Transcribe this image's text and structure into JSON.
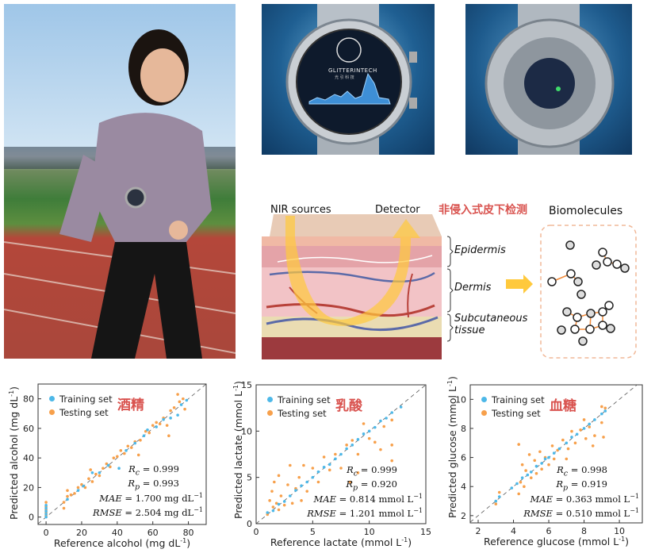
{
  "photos": {
    "runner": {
      "icon": "runner-photo"
    },
    "watch_front": {
      "brand": "GLITTERINTECH",
      "brand_cn": "光 引 科 技",
      "icon": "smartwatch-front-photo"
    },
    "watch_back": {
      "icon": "smartwatch-back-photo"
    }
  },
  "diagram": {
    "nir_sources": "NIR sources",
    "detector": "Detector",
    "title_cn": "非侵入式皮下检测",
    "biomolecules": "Biomolecules",
    "layers": [
      "Epidermis",
      "Dermis",
      "Subcutaneous",
      "tissue"
    ],
    "colors": {
      "light": "#ffc93c",
      "vein": "#5b6aa8",
      "artery": "#b8423a",
      "title": "#d9534f"
    }
  },
  "legend": {
    "training": "Training set",
    "testing": "Testing set"
  },
  "colors": {
    "training": "#4db8e8",
    "testing": "#f7a04b",
    "cn_label": "#d9534f"
  },
  "chart_data": [
    {
      "type": "scatter",
      "label_cn": "酒精",
      "xlabel": {
        "prefix": "Reference alcohol (mg dL",
        "sup": "-1",
        "suffix": ")"
      },
      "ylabel": {
        "prefix": "Predicted alcohol (mg dL",
        "sup": "-1",
        "suffix": ")"
      },
      "xlim": [
        -4.5,
        90
      ],
      "ylim": [
        -5,
        90
      ],
      "xticks": [
        0,
        20,
        40,
        60,
        80
      ],
      "yticks": [
        0,
        20,
        40,
        60,
        80
      ],
      "diagonal": true,
      "legend": "top-left",
      "stats": [
        {
          "var": "R",
          "sub": "c",
          "value": " = 0.999",
          "sup": ""
        },
        {
          "var": "R",
          "sub": "p",
          "value": " = 0.993",
          "sup": ""
        },
        {
          "var": "MAE",
          "sub": "",
          "value": " = 1.700 mg dL",
          "sup": "−1"
        },
        {
          "var": "RMSE",
          "sub": "",
          "value": " = 2.504 mg dL",
          "sup": "−1"
        }
      ],
      "series": [
        {
          "name": "Training set",
          "points": [
            [
              0,
              0
            ],
            [
              0,
              2
            ],
            [
              0,
              4
            ],
            [
              0,
              6
            ],
            [
              0,
              8
            ],
            [
              12,
              12
            ],
            [
              18,
              18
            ],
            [
              21,
              21
            ],
            [
              26,
              30
            ],
            [
              30,
              30
            ],
            [
              35,
              35
            ],
            [
              41,
              33
            ],
            [
              45,
              45
            ],
            [
              50,
              50
            ],
            [
              55,
              55
            ],
            [
              57,
              59
            ],
            [
              62,
              61
            ],
            [
              66,
              66
            ],
            [
              70,
              67
            ],
            [
              74,
              69
            ],
            [
              76,
              76
            ],
            [
              79,
              79
            ]
          ]
        },
        {
          "name": "Testing set",
          "points": [
            [
              0,
              1
            ],
            [
              0,
              3
            ],
            [
              0,
              5
            ],
            [
              0,
              7
            ],
            [
              0,
              10
            ],
            [
              10,
              10
            ],
            [
              10,
              6
            ],
            [
              12,
              14
            ],
            [
              12,
              18
            ],
            [
              14,
              15
            ],
            [
              16,
              16
            ],
            [
              18,
              20
            ],
            [
              20,
              22
            ],
            [
              22,
              20
            ],
            [
              24,
              26
            ],
            [
              25,
              32
            ],
            [
              26,
              24
            ],
            [
              28,
              29
            ],
            [
              30,
              28
            ],
            [
              32,
              33
            ],
            [
              34,
              36
            ],
            [
              36,
              34
            ],
            [
              38,
              40
            ],
            [
              40,
              41
            ],
            [
              42,
              45
            ],
            [
              44,
              43
            ],
            [
              46,
              48
            ],
            [
              48,
              47
            ],
            [
              50,
              51
            ],
            [
              52,
              42
            ],
            [
              53,
              52
            ],
            [
              56,
              58
            ],
            [
              58,
              57
            ],
            [
              60,
              62
            ],
            [
              62,
              64
            ],
            [
              64,
              63
            ],
            [
              66,
              67
            ],
            [
              68,
              62
            ],
            [
              69,
              55
            ],
            [
              70,
              72
            ],
            [
              72,
              74
            ],
            [
              74,
              83
            ],
            [
              75,
              78
            ],
            [
              77,
              80
            ],
            [
              78,
              73
            ]
          ]
        }
      ]
    },
    {
      "type": "scatter",
      "label_cn": "乳酸",
      "xlabel": {
        "prefix": "Reference lactate (mmol L",
        "sup": "-1",
        "suffix": ")"
      },
      "ylabel": {
        "prefix": "Predicted lactate (mmol L",
        "sup": "-1",
        "suffix": ")"
      },
      "xlim": [
        0,
        15
      ],
      "ylim": [
        0,
        15
      ],
      "xticks": [
        0,
        5,
        10,
        15
      ],
      "yticks": [
        0,
        5,
        10,
        15
      ],
      "diagonal": true,
      "legend": "top-left",
      "stats": [
        {
          "var": "R",
          "sub": "c",
          "value": " = 0.999",
          "sup": ""
        },
        {
          "var": "R",
          "sub": "p",
          "value": " = 0.920",
          "sup": ""
        },
        {
          "var": "MAE",
          "sub": "",
          "value": " = 0.814 mmol L",
          "sup": "−1"
        },
        {
          "var": "RMSE",
          "sub": "",
          "value": " = 1.201 mmol L",
          "sup": "−1"
        }
      ],
      "series": [
        {
          "name": "Training set",
          "points": [
            [
              1,
              1.2
            ],
            [
              1.5,
              1.4
            ],
            [
              2,
              2.1
            ],
            [
              2.5,
              2.4
            ],
            [
              3,
              3.0
            ],
            [
              3.5,
              3.6
            ],
            [
              4,
              4.1
            ],
            [
              4.5,
              4.5
            ],
            [
              5,
              5.0
            ],
            [
              5.5,
              5.6
            ],
            [
              6,
              6.1
            ],
            [
              6.5,
              6.4
            ],
            [
              7,
              7.0
            ],
            [
              7.5,
              7.5
            ],
            [
              8,
              8.1
            ],
            [
              8.5,
              8.5
            ],
            [
              9,
              9.1
            ],
            [
              9.5,
              9.7
            ],
            [
              10,
              10.0
            ],
            [
              10.5,
              10.4
            ],
            [
              11,
              11.1
            ],
            [
              11.5,
              11.4
            ],
            [
              12,
              12.0
            ],
            [
              12.8,
              12.6
            ]
          ]
        },
        {
          "name": "Testing set",
          "points": [
            [
              1,
              1
            ],
            [
              1.2,
              2.5
            ],
            [
              1.4,
              3.5
            ],
            [
              1.5,
              1.8
            ],
            [
              1.6,
              4.5
            ],
            [
              1.8,
              2.2
            ],
            [
              2,
              5.2
            ],
            [
              2,
              1.5
            ],
            [
              2.2,
              3.0
            ],
            [
              2.5,
              2.0
            ],
            [
              2.8,
              4.2
            ],
            [
              3,
              6.3
            ],
            [
              3.2,
              2.2
            ],
            [
              3.5,
              3.8
            ],
            [
              3.8,
              5.0
            ],
            [
              4,
              2.5
            ],
            [
              4.2,
              6.3
            ],
            [
              4.5,
              3.5
            ],
            [
              5,
              6.0
            ],
            [
              5.5,
              4.5
            ],
            [
              6,
              7.2
            ],
            [
              6.5,
              5.8
            ],
            [
              7,
              7.5
            ],
            [
              7.5,
              6.0
            ],
            [
              8,
              8.5
            ],
            [
              8.3,
              4.5
            ],
            [
              8.5,
              9.0
            ],
            [
              9,
              5.5
            ],
            [
              9,
              7.5
            ],
            [
              9.5,
              10.8
            ],
            [
              10,
              9.2
            ],
            [
              10.5,
              8.8
            ],
            [
              11,
              8.0
            ],
            [
              11.3,
              10.5
            ],
            [
              12,
              6.8
            ],
            [
              12,
              11.2
            ],
            [
              12,
              8.5
            ]
          ]
        }
      ]
    },
    {
      "type": "scatter",
      "label_cn": "血糖",
      "xlabel": {
        "prefix": "Reference glucose (mmol L",
        "sup": "-1",
        "suffix": ")"
      },
      "ylabel": {
        "prefix": "Predicted glucose (mmol L",
        "sup": "-1",
        "suffix": ")"
      },
      "xlim": [
        1.55,
        11.3
      ],
      "ylim": [
        1.5,
        11
      ],
      "xticks": [
        2,
        4,
        6,
        8,
        10
      ],
      "yticks": [
        2,
        4,
        6,
        8,
        10
      ],
      "diagonal": true,
      "legend": "top-left",
      "stats": [
        {
          "var": "R",
          "sub": "c",
          "value": " = 0.998",
          "sup": ""
        },
        {
          "var": "R",
          "sub": "p",
          "value": " = 0.919",
          "sup": ""
        },
        {
          "var": "MAE",
          "sub": "",
          "value": " = 0.363 mmol L",
          "sup": "−1"
        },
        {
          "var": "RMSE",
          "sub": "",
          "value": " = 0.510 mmol L",
          "sup": "−1"
        }
      ],
      "series": [
        {
          "name": "Training set",
          "points": [
            [
              3,
              3.0
            ],
            [
              3.2,
              3.3
            ],
            [
              3.9,
              3.9
            ],
            [
              4.2,
              4.2
            ],
            [
              4.5,
              4.6
            ],
            [
              4.8,
              4.8
            ],
            [
              5,
              5.0
            ],
            [
              5.3,
              5.4
            ],
            [
              5.6,
              5.6
            ],
            [
              5.8,
              5.9
            ],
            [
              6,
              6.0
            ],
            [
              6.3,
              6.3
            ],
            [
              6.6,
              6.6
            ],
            [
              7,
              7.0
            ],
            [
              7.3,
              7.4
            ],
            [
              7.6,
              7.6
            ],
            [
              8,
              8.0
            ],
            [
              8.3,
              8.3
            ],
            [
              8.6,
              8.6
            ],
            [
              9,
              9.0
            ],
            [
              9.2,
              9.2
            ]
          ]
        },
        {
          "name": "Testing set",
          "points": [
            [
              3,
              2.8
            ],
            [
              3.2,
              3.6
            ],
            [
              4.3,
              6.9
            ],
            [
              4.3,
              3.5
            ],
            [
              4.4,
              4.3
            ],
            [
              4.5,
              5.5
            ],
            [
              4.6,
              4.0
            ],
            [
              4.7,
              5.1
            ],
            [
              4.9,
              6.2
            ],
            [
              5,
              4.6
            ],
            [
              5.2,
              5.8
            ],
            [
              5.3,
              4.9
            ],
            [
              5.5,
              6.4
            ],
            [
              5.6,
              5.2
            ],
            [
              5.8,
              6.0
            ],
            [
              6,
              5.5
            ],
            [
              6.2,
              6.8
            ],
            [
              6.3,
              5.9
            ],
            [
              6.5,
              6.5
            ],
            [
              6.8,
              7.2
            ],
            [
              7,
              5.9
            ],
            [
              7.1,
              6.6
            ],
            [
              7.3,
              7.8
            ],
            [
              7.5,
              7.0
            ],
            [
              7.8,
              7.9
            ],
            [
              8,
              8.6
            ],
            [
              8.1,
              7.3
            ],
            [
              8.3,
              8.1
            ],
            [
              8.5,
              6.8
            ],
            [
              8.6,
              7.5
            ],
            [
              9,
              8.4
            ],
            [
              9,
              9.5
            ],
            [
              9.1,
              7.4
            ],
            [
              9.2,
              9.4
            ]
          ]
        }
      ]
    }
  ]
}
